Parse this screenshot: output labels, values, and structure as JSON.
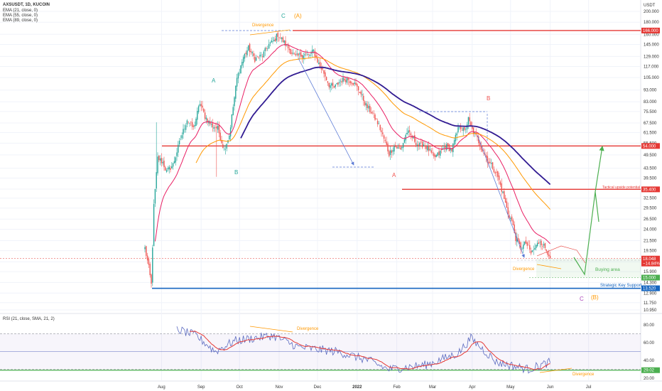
{
  "chart_data": {
    "type": "candlestick",
    "symbol": "AXSUSDT, 1D, KUCOIN",
    "price_axis_unit": "USDT",
    "indicators": [
      {
        "label": "EMA (21, close, 0)",
        "period": 21,
        "color": "#e91e63"
      },
      {
        "label": "EMA (55, close, 0)",
        "period": 55,
        "color": "#ff9800"
      },
      {
        "label": "EMA (89, close, 0)",
        "period": 89,
        "color": "#311b92"
      }
    ],
    "price_ticks": [
      "200.000",
      "180.000",
      "160.000",
      "145.000",
      "129.000",
      "117.000",
      "105.000",
      "93.000",
      "83.000",
      "75.500",
      "67.500",
      "61.500",
      "55.500",
      "49.500",
      "43.500",
      "39.500",
      "35.500",
      "32.500",
      "29.500",
      "26.500",
      "24.000",
      "21.500",
      "19.500",
      "17.500",
      "15.900",
      "14.300",
      "12.900",
      "11.750",
      "10.950"
    ],
    "price_tags": [
      {
        "value": 166.0,
        "label": "166.000",
        "color": "#e53935"
      },
      {
        "value": 54.0,
        "label": "54.000",
        "color": "#e53935"
      },
      {
        "value": 35.4,
        "label": "35.400",
        "color": "#e53935"
      },
      {
        "value": 18.048,
        "label": "18.048",
        "color": "#e53935"
      },
      {
        "value": 17.2,
        "label": "−14.84%",
        "color": "#e53935"
      },
      {
        "value": 15.0,
        "label": "15.000",
        "color": "#4caf50"
      },
      {
        "value": 13.52,
        "label": "13.520",
        "color": "#1565c0"
      }
    ],
    "time_ticks": [
      "Aug",
      "Sep",
      "Oct",
      "Nov",
      "Dec",
      "2022",
      "Feb",
      "Mar",
      "Apr",
      "May",
      "Jun",
      "Jul"
    ],
    "levels": [
      {
        "value": 166.0,
        "color": "#e53935",
        "style": "solid"
      },
      {
        "value": 54.0,
        "color": "#e53935",
        "style": "solid"
      },
      {
        "value": 35.4,
        "color": "#e53935",
        "style": "solid"
      },
      {
        "value": 13.52,
        "color": "#1565c0",
        "style": "solid"
      }
    ],
    "annotations": {
      "wave_labels": [
        {
          "text": "A",
          "color": "#26a69a"
        },
        {
          "text": "B",
          "color": "#26a69a"
        },
        {
          "text": "C",
          "color": "#26a69a"
        },
        {
          "text": "(A)",
          "color": "#ff9800"
        },
        {
          "text": "A",
          "color": "#ef5350"
        },
        {
          "text": "B",
          "color": "#ef5350"
        },
        {
          "text": "C",
          "color": "#ab47bc"
        },
        {
          "text": "(B)",
          "color": "#ff9800"
        }
      ],
      "notes": [
        {
          "text": "Divergence",
          "color": "#ff9800"
        },
        {
          "text": "Divergence",
          "color": "#ff9800"
        },
        {
          "text": "Tactical upside potential",
          "color": "#e53935"
        },
        {
          "text": "Buying area",
          "color": "#4caf50"
        },
        {
          "text": "Strategic Key Support",
          "color": "#1565c0"
        }
      ]
    },
    "rsi": {
      "label": "RSI (21, close, SMA, 21, 2)",
      "ticks": [
        "80.00",
        "60.00",
        "40.00",
        "20.00"
      ],
      "range": [
        15,
        90
      ],
      "current": 29.02,
      "current_label": "29.02",
      "bands": [
        70,
        30
      ],
      "mid": 50,
      "notes": [
        {
          "text": "Divergence",
          "color": "#ff9800"
        },
        {
          "text": "Divergence",
          "color": "#ff9800"
        }
      ]
    }
  }
}
